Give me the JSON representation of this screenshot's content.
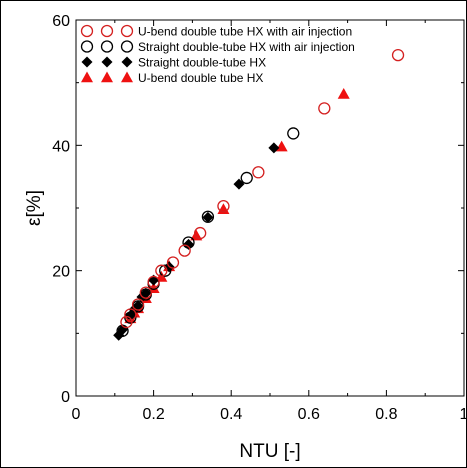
{
  "chart_data": {
    "type": "scatter",
    "title": "",
    "xlabel": "NTU [-]",
    "ylabel": "ε[%]",
    "xlim": [
      0,
      1
    ],
    "ylim": [
      0,
      60
    ],
    "xticks": [
      "0",
      "0.2",
      "0.4",
      "0.6",
      "0.8",
      "1"
    ],
    "yticks": [
      "0",
      "20",
      "40",
      "60"
    ],
    "grid": false,
    "legend_position": "top-left",
    "series": [
      {
        "name": "U-bend double tube HX with air injection",
        "marker": "open-circle",
        "color": "#d42020",
        "x": [
          0.13,
          0.14,
          0.16,
          0.18,
          0.2,
          0.22,
          0.25,
          0.28,
          0.32,
          0.38,
          0.47,
          0.64,
          0.83
        ],
        "y": [
          11.8,
          13.0,
          14.6,
          16.5,
          18.2,
          20.0,
          21.3,
          23.2,
          26.0,
          30.3,
          35.7,
          45.9,
          54.4
        ]
      },
      {
        "name": "Straight double-tube HX with air injection",
        "marker": "open-circle",
        "color": "#000000",
        "x": [
          0.12,
          0.14,
          0.16,
          0.18,
          0.2,
          0.23,
          0.29,
          0.34,
          0.44,
          0.56
        ],
        "y": [
          10.4,
          12.5,
          14.3,
          16.2,
          17.9,
          20.0,
          24.5,
          28.6,
          34.8,
          41.9
        ]
      },
      {
        "name": "Straight double-tube HX",
        "marker": "filled-diamond",
        "color": "#000000",
        "x": [
          0.11,
          0.12,
          0.14,
          0.15,
          0.16,
          0.17,
          0.18,
          0.2,
          0.24,
          0.29,
          0.34,
          0.42,
          0.51
        ],
        "y": [
          9.7,
          10.6,
          12.8,
          13.8,
          14.4,
          15.8,
          16.4,
          18.5,
          20.6,
          24.2,
          28.5,
          33.8,
          39.6
        ]
      },
      {
        "name": "U-bend double tube HX",
        "marker": "filled-triangle",
        "color": "#ee1111",
        "x": [
          0.14,
          0.15,
          0.16,
          0.18,
          0.2,
          0.22,
          0.24,
          0.31,
          0.38,
          0.53,
          0.69
        ],
        "y": [
          12.4,
          13.3,
          14.0,
          15.6,
          17.2,
          19.0,
          20.7,
          25.6,
          29.8,
          39.8,
          48.2
        ]
      }
    ]
  }
}
